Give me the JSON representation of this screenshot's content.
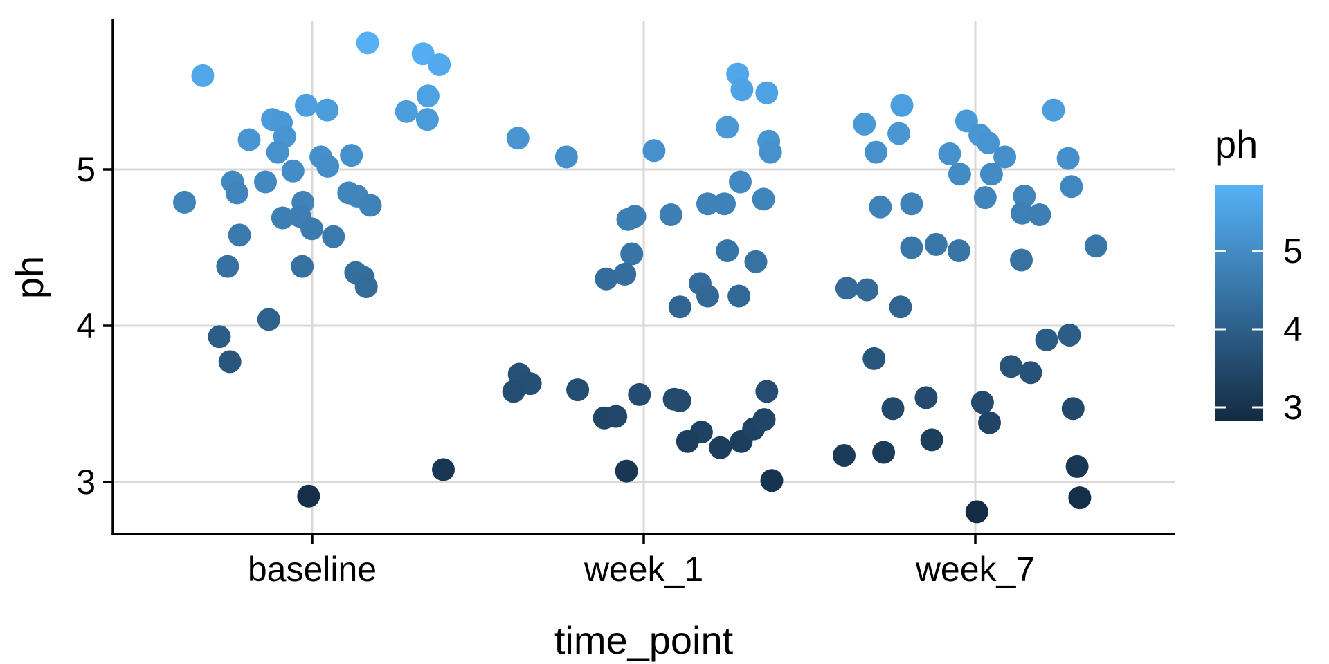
{
  "chart_data": {
    "type": "scatter",
    "title": "",
    "xlabel": "time_point",
    "ylabel": "ph",
    "x_categories": [
      "baseline",
      "week_1",
      "week_7"
    ],
    "y_ticks": [
      "5",
      "4",
      "3"
    ],
    "y_tick_values": [
      5,
      4,
      3
    ],
    "ylim": [
      2.67,
      5.95
    ],
    "grid": "major-only",
    "gridline_color": "#D9D9D9",
    "axis_line_color": "#000000",
    "legend": {
      "title": "ph",
      "position": "right",
      "tick_labels": [
        "5",
        "4",
        "3"
      ],
      "tick_values": [
        5,
        4,
        3
      ],
      "domain": [
        2.81,
        5.83
      ],
      "low_color": "#132B43",
      "high_color": "#56B1F7"
    },
    "point_color_encodes": "ph",
    "points": [
      {
        "x": "baseline",
        "xj": 1.168,
        "ph": 5.81
      },
      {
        "x": "baseline",
        "xj": 1.335,
        "ph": 5.74
      },
      {
        "x": "baseline",
        "xj": 1.384,
        "ph": 5.67
      },
      {
        "x": "baseline",
        "xj": 0.671,
        "ph": 5.6
      },
      {
        "x": "baseline",
        "xj": 1.35,
        "ph": 5.47
      },
      {
        "x": "baseline",
        "xj": 0.983,
        "ph": 5.41
      },
      {
        "x": "baseline",
        "xj": 1.046,
        "ph": 5.38
      },
      {
        "x": "baseline",
        "xj": 1.285,
        "ph": 5.37
      },
      {
        "x": "baseline",
        "xj": 1.348,
        "ph": 5.32
      },
      {
        "x": "baseline",
        "xj": 0.881,
        "ph": 5.32
      },
      {
        "x": "baseline",
        "xj": 0.908,
        "ph": 5.3
      },
      {
        "x": "baseline",
        "xj": 0.918,
        "ph": 5.21
      },
      {
        "x": "baseline",
        "xj": 0.811,
        "ph": 5.19
      },
      {
        "x": "baseline",
        "xj": 0.897,
        "ph": 5.11
      },
      {
        "x": "baseline",
        "xj": 1.027,
        "ph": 5.08
      },
      {
        "x": "baseline",
        "xj": 1.119,
        "ph": 5.09
      },
      {
        "x": "baseline",
        "xj": 1.048,
        "ph": 5.02
      },
      {
        "x": "baseline",
        "xj": 0.943,
        "ph": 4.99
      },
      {
        "x": "baseline",
        "xj": 0.761,
        "ph": 4.92
      },
      {
        "x": "baseline",
        "xj": 0.774,
        "ph": 4.85
      },
      {
        "x": "baseline",
        "xj": 0.86,
        "ph": 4.92
      },
      {
        "x": "baseline",
        "xj": 1.111,
        "ph": 4.85
      },
      {
        "x": "baseline",
        "xj": 1.136,
        "ph": 4.83
      },
      {
        "x": "baseline",
        "xj": 0.616,
        "ph": 4.79
      },
      {
        "x": "baseline",
        "xj": 1.176,
        "ph": 4.77
      },
      {
        "x": "baseline",
        "xj": 0.973,
        "ph": 4.79
      },
      {
        "x": "baseline",
        "xj": 0.964,
        "ph": 4.7
      },
      {
        "x": "baseline",
        "xj": 0.912,
        "ph": 4.69
      },
      {
        "x": "baseline",
        "xj": 1.0,
        "ph": 4.62
      },
      {
        "x": "baseline",
        "xj": 0.782,
        "ph": 4.58
      },
      {
        "x": "baseline",
        "xj": 1.065,
        "ph": 4.57
      },
      {
        "x": "baseline",
        "xj": 0.746,
        "ph": 4.38
      },
      {
        "x": "baseline",
        "xj": 0.971,
        "ph": 4.38
      },
      {
        "x": "baseline",
        "xj": 1.132,
        "ph": 4.34
      },
      {
        "x": "baseline",
        "xj": 1.155,
        "ph": 4.31
      },
      {
        "x": "baseline",
        "xj": 1.164,
        "ph": 4.25
      },
      {
        "x": "baseline",
        "xj": 0.87,
        "ph": 4.04
      },
      {
        "x": "baseline",
        "xj": 0.721,
        "ph": 3.93
      },
      {
        "x": "baseline",
        "xj": 0.753,
        "ph": 3.77
      },
      {
        "x": "baseline",
        "xj": 1.396,
        "ph": 3.08
      },
      {
        "x": "baseline",
        "xj": 0.99,
        "ph": 2.91
      },
      {
        "x": "week_1",
        "xj": 2.283,
        "ph": 5.61
      },
      {
        "x": "week_1",
        "xj": 2.296,
        "ph": 5.51
      },
      {
        "x": "week_1",
        "xj": 2.371,
        "ph": 5.49
      },
      {
        "x": "week_1",
        "xj": 1.621,
        "ph": 5.2
      },
      {
        "x": "week_1",
        "xj": 1.767,
        "ph": 5.08
      },
      {
        "x": "week_1",
        "xj": 2.031,
        "ph": 5.12
      },
      {
        "x": "week_1",
        "xj": 2.252,
        "ph": 5.27
      },
      {
        "x": "week_1",
        "xj": 2.377,
        "ph": 5.18
      },
      {
        "x": "week_1",
        "xj": 2.382,
        "ph": 5.11
      },
      {
        "x": "week_1",
        "xj": 2.291,
        "ph": 4.92
      },
      {
        "x": "week_1",
        "xj": 2.361,
        "ph": 4.81
      },
      {
        "x": "week_1",
        "xj": 2.193,
        "ph": 4.78
      },
      {
        "x": "week_1",
        "xj": 2.243,
        "ph": 4.78
      },
      {
        "x": "week_1",
        "xj": 1.973,
        "ph": 4.7
      },
      {
        "x": "week_1",
        "xj": 1.952,
        "ph": 4.68
      },
      {
        "x": "week_1",
        "xj": 2.082,
        "ph": 4.71
      },
      {
        "x": "week_1",
        "xj": 2.252,
        "ph": 4.48
      },
      {
        "x": "week_1",
        "xj": 2.338,
        "ph": 4.41
      },
      {
        "x": "week_1",
        "xj": 1.964,
        "ph": 4.46
      },
      {
        "x": "week_1",
        "xj": 1.887,
        "ph": 4.3
      },
      {
        "x": "week_1",
        "xj": 1.943,
        "ph": 4.33
      },
      {
        "x": "week_1",
        "xj": 2.17,
        "ph": 4.27
      },
      {
        "x": "week_1",
        "xj": 2.193,
        "ph": 4.19
      },
      {
        "x": "week_1",
        "xj": 2.109,
        "ph": 4.12
      },
      {
        "x": "week_1",
        "xj": 2.287,
        "ph": 4.19
      },
      {
        "x": "week_1",
        "xj": 1.625,
        "ph": 3.69
      },
      {
        "x": "week_1",
        "xj": 1.658,
        "ph": 3.63
      },
      {
        "x": "week_1",
        "xj": 1.608,
        "ph": 3.58
      },
      {
        "x": "week_1",
        "xj": 1.801,
        "ph": 3.59
      },
      {
        "x": "week_1",
        "xj": 1.987,
        "ph": 3.56
      },
      {
        "x": "week_1",
        "xj": 2.092,
        "ph": 3.53
      },
      {
        "x": "week_1",
        "xj": 2.109,
        "ph": 3.52
      },
      {
        "x": "week_1",
        "xj": 1.881,
        "ph": 3.41
      },
      {
        "x": "week_1",
        "xj": 1.916,
        "ph": 3.42
      },
      {
        "x": "week_1",
        "xj": 2.371,
        "ph": 3.58
      },
      {
        "x": "week_1",
        "xj": 2.174,
        "ph": 3.32
      },
      {
        "x": "week_1",
        "xj": 2.132,
        "ph": 3.26
      },
      {
        "x": "week_1",
        "xj": 2.231,
        "ph": 3.22
      },
      {
        "x": "week_1",
        "xj": 2.294,
        "ph": 3.26
      },
      {
        "x": "week_1",
        "xj": 2.331,
        "ph": 3.34
      },
      {
        "x": "week_1",
        "xj": 2.363,
        "ph": 3.4
      },
      {
        "x": "week_1",
        "xj": 1.948,
        "ph": 3.07
      },
      {
        "x": "week_1",
        "xj": 2.386,
        "ph": 3.01
      },
      {
        "x": "week_7",
        "xj": 2.778,
        "ph": 5.41
      },
      {
        "x": "week_7",
        "xj": 3.235,
        "ph": 5.38
      },
      {
        "x": "week_7",
        "xj": 2.665,
        "ph": 5.29
      },
      {
        "x": "week_7",
        "xj": 2.769,
        "ph": 5.23
      },
      {
        "x": "week_7",
        "xj": 2.973,
        "ph": 5.31
      },
      {
        "x": "week_7",
        "xj": 3.013,
        "ph": 5.22
      },
      {
        "x": "week_7",
        "xj": 3.038,
        "ph": 5.17
      },
      {
        "x": "week_7",
        "xj": 2.7,
        "ph": 5.11
      },
      {
        "x": "week_7",
        "xj": 2.922,
        "ph": 5.1
      },
      {
        "x": "week_7",
        "xj": 3.088,
        "ph": 5.08
      },
      {
        "x": "week_7",
        "xj": 3.279,
        "ph": 5.07
      },
      {
        "x": "week_7",
        "xj": 2.952,
        "ph": 4.97
      },
      {
        "x": "week_7",
        "xj": 3.048,
        "ph": 4.97
      },
      {
        "x": "week_7",
        "xj": 3.289,
        "ph": 4.89
      },
      {
        "x": "week_7",
        "xj": 2.713,
        "ph": 4.76
      },
      {
        "x": "week_7",
        "xj": 2.807,
        "ph": 4.78
      },
      {
        "x": "week_7",
        "xj": 3.029,
        "ph": 4.82
      },
      {
        "x": "week_7",
        "xj": 3.147,
        "ph": 4.83
      },
      {
        "x": "week_7",
        "xj": 3.14,
        "ph": 4.72
      },
      {
        "x": "week_7",
        "xj": 3.193,
        "ph": 4.71
      },
      {
        "x": "week_7",
        "xj": 2.881,
        "ph": 4.52
      },
      {
        "x": "week_7",
        "xj": 2.807,
        "ph": 4.5
      },
      {
        "x": "week_7",
        "xj": 2.95,
        "ph": 4.48
      },
      {
        "x": "week_7",
        "xj": 3.138,
        "ph": 4.42
      },
      {
        "x": "week_7",
        "xj": 3.363,
        "ph": 4.51
      },
      {
        "x": "week_7",
        "xj": 2.612,
        "ph": 4.24
      },
      {
        "x": "week_7",
        "xj": 2.673,
        "ph": 4.23
      },
      {
        "x": "week_7",
        "xj": 2.774,
        "ph": 4.12
      },
      {
        "x": "week_7",
        "xj": 3.214,
        "ph": 3.91
      },
      {
        "x": "week_7",
        "xj": 3.283,
        "ph": 3.94
      },
      {
        "x": "week_7",
        "xj": 2.694,
        "ph": 3.79
      },
      {
        "x": "week_7",
        "xj": 3.107,
        "ph": 3.74
      },
      {
        "x": "week_7",
        "xj": 3.166,
        "ph": 3.7
      },
      {
        "x": "week_7",
        "xj": 2.851,
        "ph": 3.54
      },
      {
        "x": "week_7",
        "xj": 2.751,
        "ph": 3.47
      },
      {
        "x": "week_7",
        "xj": 3.021,
        "ph": 3.51
      },
      {
        "x": "week_7",
        "xj": 3.042,
        "ph": 3.38
      },
      {
        "x": "week_7",
        "xj": 3.294,
        "ph": 3.47
      },
      {
        "x": "week_7",
        "xj": 2.868,
        "ph": 3.27
      },
      {
        "x": "week_7",
        "xj": 2.604,
        "ph": 3.17
      },
      {
        "x": "week_7",
        "xj": 2.723,
        "ph": 3.19
      },
      {
        "x": "week_7",
        "xj": 3.306,
        "ph": 3.1
      },
      {
        "x": "week_7",
        "xj": 3.314,
        "ph": 2.9
      },
      {
        "x": "week_7",
        "xj": 3.004,
        "ph": 2.81
      }
    ]
  }
}
